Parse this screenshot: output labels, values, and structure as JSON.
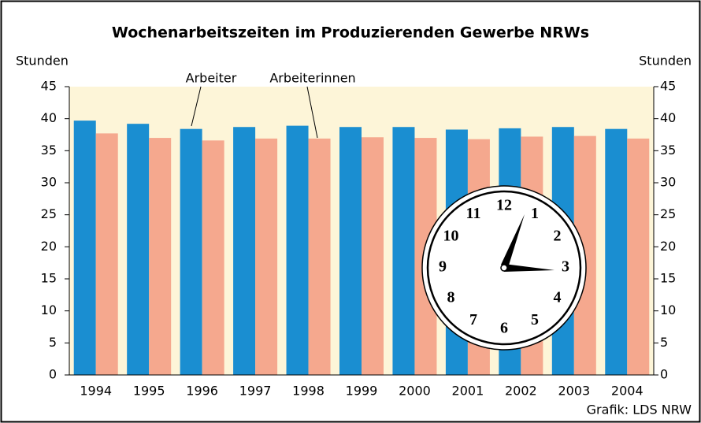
{
  "chart_data": {
    "type": "bar",
    "title": "Wochenarbeitszeiten im Produzierenden Gewerbe NRWs",
    "y_label": "Stunden",
    "y2_label": "Stunden",
    "categories": [
      "1994",
      "1995",
      "1996",
      "1997",
      "1998",
      "1999",
      "2000",
      "2001",
      "2002",
      "2003",
      "2004"
    ],
    "series": [
      {
        "name": "Arbeiter",
        "color": "#1a8ed1",
        "values": [
          39.7,
          39.2,
          38.4,
          38.7,
          38.9,
          38.7,
          38.7,
          38.3,
          38.5,
          38.7,
          38.4
        ]
      },
      {
        "name": "Arbeiterinnen",
        "color": "#f5a88e",
        "values": [
          37.7,
          37.0,
          36.6,
          36.9,
          36.9,
          37.1,
          37.0,
          36.8,
          37.2,
          37.3,
          36.9
        ]
      }
    ],
    "ylim": [
      0,
      45
    ],
    "yticks": [
      0,
      5,
      10,
      15,
      20,
      25,
      30,
      35,
      40,
      45
    ],
    "y2lim": [
      0,
      45
    ],
    "y2ticks": [
      0,
      5,
      10,
      15,
      20,
      25,
      30,
      35,
      40,
      45
    ],
    "plot_background": "#fdf5d8",
    "source": "Grafik: LDS NRW"
  },
  "clock_numerals": [
    "12",
    "1",
    "2",
    "3",
    "4",
    "5",
    "6",
    "7",
    "8",
    "9",
    "10",
    "11"
  ]
}
